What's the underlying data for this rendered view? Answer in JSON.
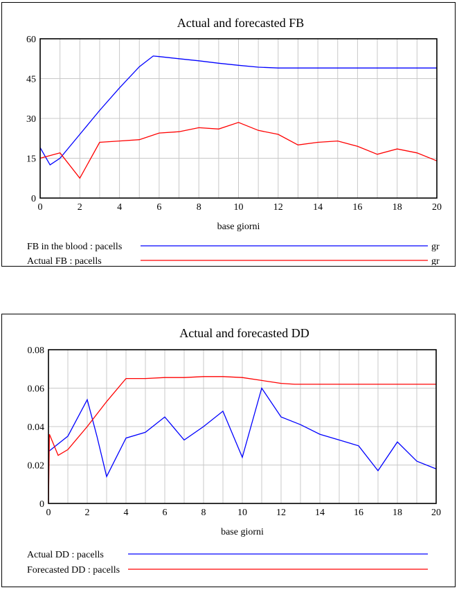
{
  "chart_data": [
    {
      "type": "line",
      "title": "Actual and forecasted FB",
      "xlabel": "base giorni",
      "ylabel": "",
      "xlim": [
        0,
        20
      ],
      "ylim": [
        0,
        60
      ],
      "xticks": [
        "0",
        "2",
        "4",
        "6",
        "8",
        "10",
        "12",
        "14",
        "16",
        "18",
        "20"
      ],
      "yticks": [
        "0",
        "15",
        "30",
        "45",
        "60"
      ],
      "grid": true,
      "legend_position": "bottom",
      "series": [
        {
          "name": "FB in the blood : pacells",
          "unit": "gr",
          "color": "#0000ff",
          "x": [
            0,
            0.5,
            1,
            2,
            3,
            4,
            5,
            5.7,
            6,
            7,
            8,
            9,
            10,
            11,
            12,
            13,
            14,
            15,
            16,
            17,
            18,
            19,
            20
          ],
          "y": [
            19,
            12.5,
            15,
            24,
            33,
            41.5,
            49.5,
            53.5,
            53.3,
            52.5,
            51.7,
            50.8,
            50,
            49.3,
            49,
            49,
            49,
            49,
            49,
            49,
            49,
            49,
            49
          ]
        },
        {
          "name": "Actual FB : pacells",
          "unit": "gr",
          "color": "#ff0000",
          "x": [
            0,
            1,
            2,
            3,
            4,
            5,
            6,
            7,
            8,
            9,
            10,
            11,
            12,
            13,
            14,
            15,
            16,
            17,
            18,
            19,
            20
          ],
          "y": [
            15,
            17,
            7.5,
            21,
            21.5,
            22,
            24.5,
            25,
            26.5,
            26,
            28.5,
            25.5,
            24,
            20,
            21,
            21.5,
            19.5,
            16.5,
            18.5,
            17,
            14
          ]
        }
      ]
    },
    {
      "type": "line",
      "title": "Actual and forecasted DD",
      "xlabel": "base giorni",
      "ylabel": "",
      "xlim": [
        0,
        20
      ],
      "ylim": [
        0,
        0.08
      ],
      "xticks": [
        "0",
        "2",
        "4",
        "6",
        "8",
        "10",
        "12",
        "14",
        "16",
        "18",
        "20"
      ],
      "yticks": [
        "0",
        "0.02",
        "0.04",
        "0.06",
        "0.08"
      ],
      "grid": true,
      "legend_position": "bottom",
      "series": [
        {
          "name": "Actual DD : pacells",
          "unit": "",
          "color": "#0000ff",
          "x": [
            0,
            1,
            2,
            2.5,
            3,
            4,
            5,
            6,
            7,
            8,
            9,
            10,
            11,
            12,
            13,
            14,
            15,
            16,
            17,
            18,
            19,
            20
          ],
          "y": [
            0.027,
            0.035,
            0.054,
            0.035,
            0.014,
            0.034,
            0.037,
            0.045,
            0.033,
            0.04,
            0.048,
            0.024,
            0.06,
            0.045,
            0.041,
            0.036,
            0.033,
            0.03,
            0.017,
            0.032,
            0.022,
            0.018
          ]
        },
        {
          "name": "Forecasted DD : pacells",
          "unit": "",
          "color": "#ff0000",
          "x": [
            0,
            0.05,
            0.5,
            1,
            2,
            3,
            4,
            5,
            6,
            7,
            8,
            9,
            10,
            11,
            12,
            12.7,
            14,
            16,
            18,
            20
          ],
          "y": [
            0.0,
            0.036,
            0.025,
            0.028,
            0.04,
            0.053,
            0.065,
            0.065,
            0.0655,
            0.0655,
            0.066,
            0.066,
            0.0655,
            0.064,
            0.0625,
            0.062,
            0.062,
            0.062,
            0.062,
            0.062
          ]
        }
      ]
    }
  ]
}
